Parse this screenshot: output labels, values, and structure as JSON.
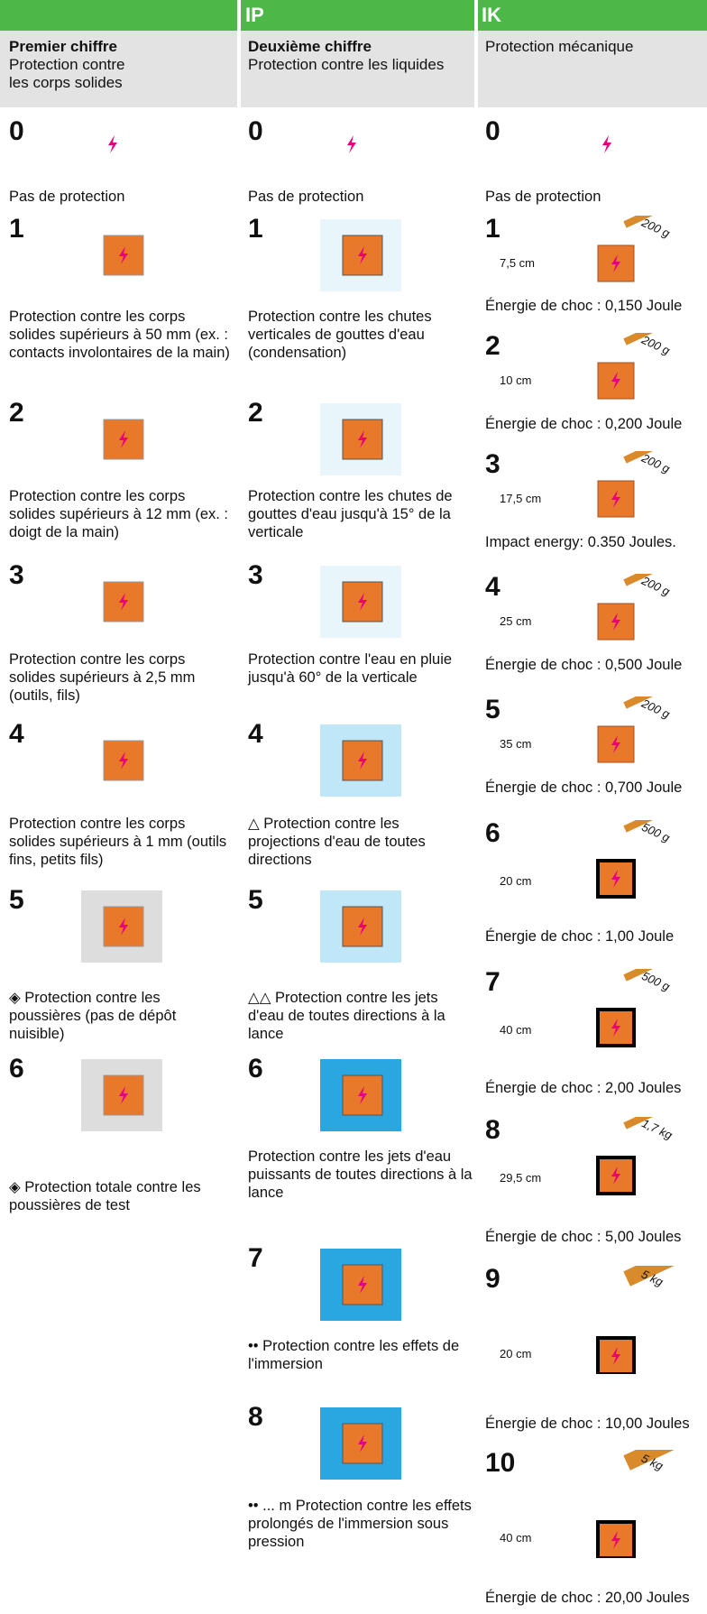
{
  "header": {
    "ip": "IP",
    "ik": "IK"
  },
  "columns": [
    {
      "title": "Premier chiffre",
      "subtitle": "Protection contre les corps solides",
      "items": [
        {
          "digit": "0",
          "text": "Pas de protection"
        },
        {
          "digit": "1",
          "text": "Protection contre les corps solides supérieurs à 50 mm (ex. : contacts involontaires de la main)"
        },
        {
          "digit": "2",
          "text": "Protection contre les corps solides supérieurs à 12 mm (ex. : doigt de la main)"
        },
        {
          "digit": "3",
          "text": "Protection contre les corps solides supérieurs à 2,5 mm (outils, fils)"
        },
        {
          "digit": "4",
          "text": "Protection contre les corps solides supérieurs à 1 mm (outils fins, petits fils)"
        },
        {
          "digit": "5",
          "text": "◈ Protection contre les poussières (pas de dépôt nuisible)"
        },
        {
          "digit": "6",
          "text": "◈ Protection totale contre les poussières de test"
        }
      ]
    },
    {
      "title": "Deuxième chiffre",
      "subtitle": "Protection contre les liquides",
      "items": [
        {
          "digit": "0",
          "text": "Pas de protection"
        },
        {
          "digit": "1",
          "text": "Protection contre les chutes verticales de gouttes d'eau (condensation)"
        },
        {
          "digit": "2",
          "text": "Protection contre les chutes de gouttes d'eau jusqu'à 15° de la verticale"
        },
        {
          "digit": "3",
          "text": "Protection contre l'eau en pluie jusqu'à 60° de la verticale"
        },
        {
          "digit": "4",
          "text": "△ Protection contre les projections d'eau de toutes directions"
        },
        {
          "digit": "5",
          "text": "△△ Protection contre les jets d'eau de toutes directions à la lance"
        },
        {
          "digit": "6",
          "text": "Protection contre les jets d'eau puissants de toutes directions à la lance"
        },
        {
          "digit": "7",
          "text": "•• Protection contre les effets de l'immersion"
        },
        {
          "digit": "8",
          "text": "•• ... m Protection contre les effets prolongés de l'immersion sous pression"
        }
      ]
    },
    {
      "subtitle": "Protection mécanique",
      "items": [
        {
          "digit": "0",
          "text": "Pas de protection"
        },
        {
          "digit": "1",
          "weight": "200 g",
          "height": "7,5 cm",
          "text": "Énergie de choc : 0,150 Joule"
        },
        {
          "digit": "2",
          "weight": "200 g",
          "height": "10 cm",
          "text": "Énergie de choc : 0,200 Joule"
        },
        {
          "digit": "3",
          "weight": "200 g",
          "height": "17,5 cm",
          "text": "Impact energy: 0.350 Joules."
        },
        {
          "digit": "4",
          "weight": "200 g",
          "height": "25 cm",
          "text": "Énergie de choc : 0,500 Joule"
        },
        {
          "digit": "5",
          "weight": "200 g",
          "height": "35 cm",
          "text": "Énergie de choc : 0,700 Joule"
        },
        {
          "digit": "6",
          "weight": "500 g",
          "height": "20 cm",
          "text": "Énergie de choc : 1,00 Joule"
        },
        {
          "digit": "7",
          "weight": "500 g",
          "height": "40 cm",
          "text": "Énergie de choc : 2,00 Joules"
        },
        {
          "digit": "8",
          "weight": "1,7 kg",
          "height": "29,5 cm",
          "text": "Énergie de choc : 5,00 Joules"
        },
        {
          "digit": "9",
          "weight": "5 kg",
          "height": "20 cm",
          "text": "Énergie de choc : 10,00 Joules"
        },
        {
          "digit": "10",
          "weight": "5 kg",
          "height": "40 cm",
          "text": "Énergie de choc : 20,00 Joules"
        }
      ]
    }
  ]
}
